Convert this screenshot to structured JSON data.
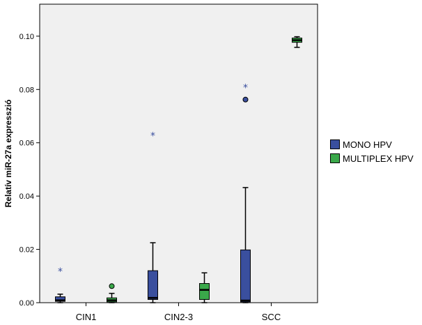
{
  "chart_data": {
    "type": "boxplot",
    "ylabel": "Relatív miR-27a expresszió",
    "xlabel": "",
    "ylim": [
      0,
      0.112
    ],
    "yticks": [
      "0.00",
      "0.02",
      "0.04",
      "0.06",
      "0.08",
      "0.10"
    ],
    "ytick_values": [
      0,
      0.02,
      0.04,
      0.06,
      0.08,
      0.1
    ],
    "categories": [
      "CIN1",
      "CIN2-3",
      "SCC"
    ],
    "grid": false,
    "legend_position": "right",
    "series": [
      {
        "name": "MONO HPV",
        "color": "#3a4f9e",
        "boxes": [
          {
            "category": "CIN1",
            "min": 0.0,
            "q1": 0.0005,
            "median": 0.0009,
            "q3": 0.0022,
            "max": 0.0032,
            "outliers": [],
            "extremes": [
              0.012
            ]
          },
          {
            "category": "CIN2-3",
            "min": 0.0,
            "q1": 0.0012,
            "median": 0.0018,
            "q3": 0.012,
            "max": 0.0225,
            "outliers": [],
            "extremes": [
              0.063
            ]
          },
          {
            "category": "SCC",
            "min": 0.0,
            "q1": 0.0003,
            "median": 0.0008,
            "q3": 0.0198,
            "max": 0.0432,
            "outliers": [
              0.0762
            ],
            "extremes": [
              0.081
            ]
          }
        ]
      },
      {
        "name": "MULTIPLEX HPV",
        "color": "#3aa84a",
        "boxes": [
          {
            "category": "CIN1",
            "min": 0.0,
            "q1": 0.0003,
            "median": 0.0009,
            "q3": 0.0018,
            "max": 0.0035,
            "outliers": [
              0.0062
            ],
            "extremes": []
          },
          {
            "category": "CIN2-3",
            "min": 0.0,
            "q1": 0.0012,
            "median": 0.0048,
            "q3": 0.0072,
            "max": 0.0112,
            "outliers": [],
            "extremes": []
          },
          {
            "category": "SCC",
            "min": 0.0958,
            "q1": 0.0977,
            "median": 0.0985,
            "q3": 0.0993,
            "max": 0.0998,
            "outliers": [],
            "extremes": []
          }
        ]
      }
    ]
  }
}
